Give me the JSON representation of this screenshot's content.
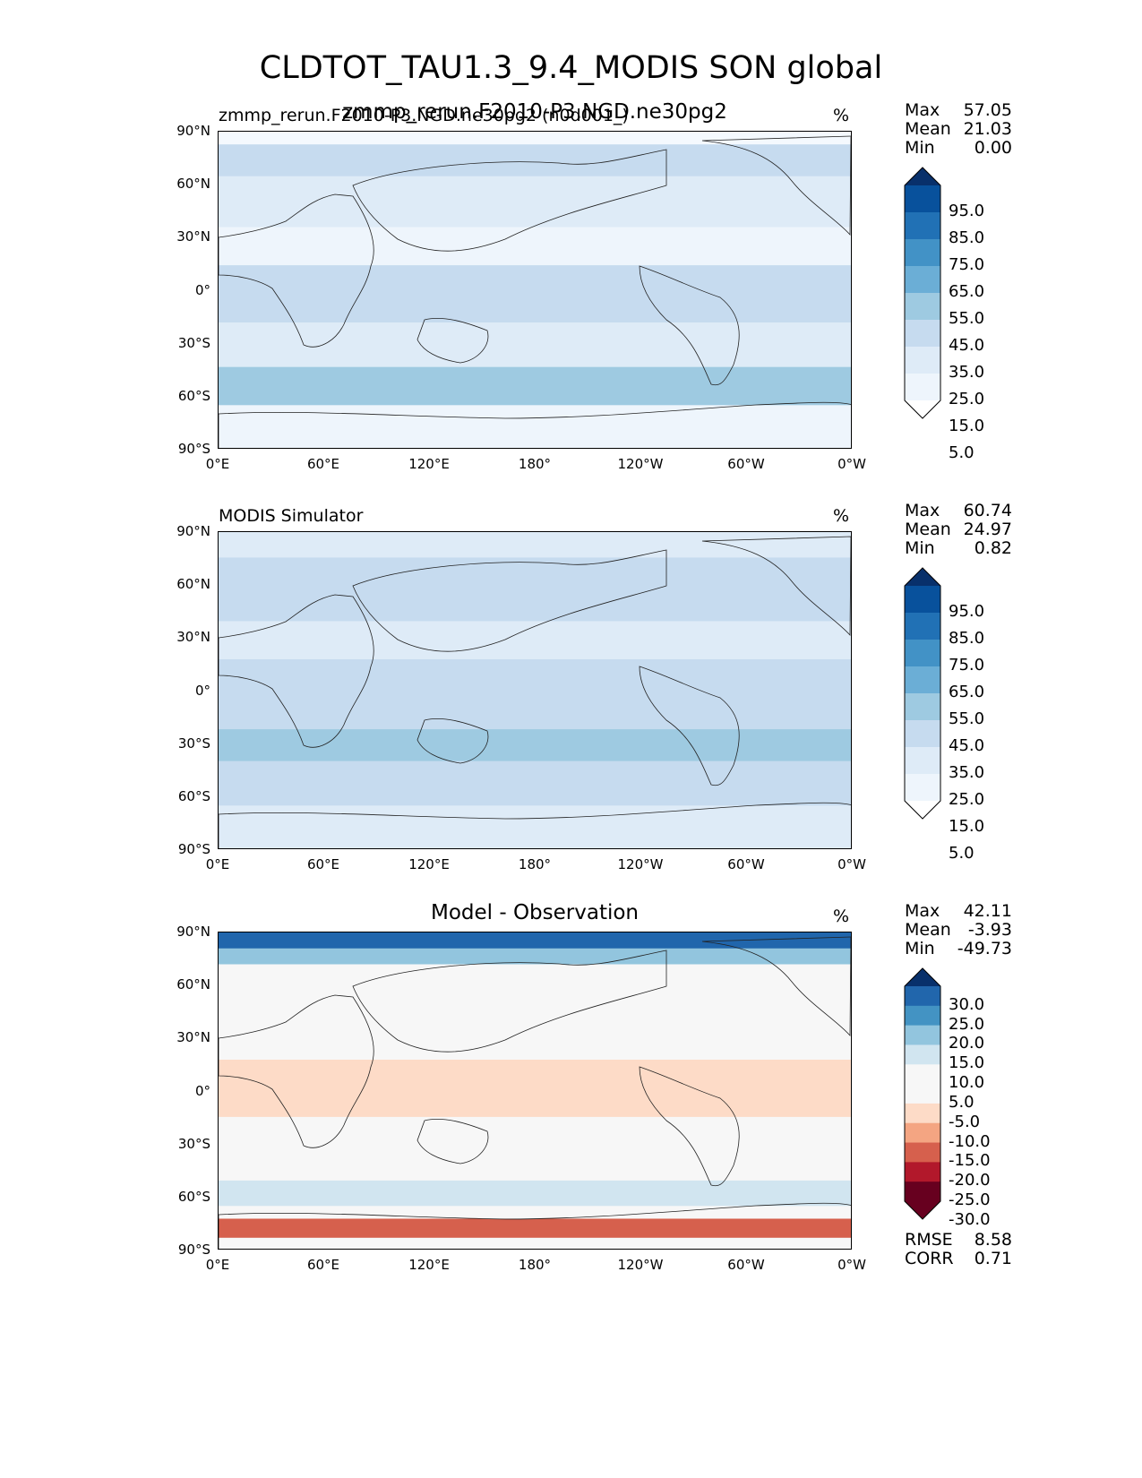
{
  "figure": {
    "title": "CLDTOT_TAU1.3_9.4_MODIS SON global"
  },
  "axes": {
    "lat_ticks": [
      "90°N",
      "60°N",
      "30°N",
      "0°",
      "30°S",
      "60°S",
      "90°S"
    ],
    "lon_ticks": [
      "0°E",
      "60°E",
      "120°E",
      "180°",
      "120°W",
      "60°W",
      "0°W"
    ]
  },
  "panels": [
    {
      "left_title": "zmmp_rerun.F2010-P3.NGD.ne30pg2 (n0d001_)",
      "center_title": "zmmp_rerun.F2010-P3.NGD.ne30pg2",
      "unit": "%",
      "stats": [
        {
          "label": "Max",
          "value": "57.05"
        },
        {
          "label": "Mean",
          "value": "21.03"
        },
        {
          "label": "Min",
          "value": "0.00"
        }
      ],
      "colorbar": {
        "labels": [
          "95.0",
          "85.0",
          "75.0",
          "65.0",
          "55.0",
          "45.0",
          "35.0",
          "25.0",
          "15.0",
          "5.0"
        ],
        "colors": [
          "#08306b",
          "#08519c",
          "#2171b5",
          "#4292c6",
          "#6baed6",
          "#9ecae1",
          "#c6dbef",
          "#deebf7",
          "#eef5fc",
          "#ffffff"
        ]
      }
    },
    {
      "left_title": "MODIS Simulator",
      "center_title": "",
      "unit": "%",
      "stats": [
        {
          "label": "Max",
          "value": "60.74"
        },
        {
          "label": "Mean",
          "value": "24.97"
        },
        {
          "label": "Min",
          "value": "0.82"
        }
      ],
      "colorbar": {
        "labels": [
          "95.0",
          "85.0",
          "75.0",
          "65.0",
          "55.0",
          "45.0",
          "35.0",
          "25.0",
          "15.0",
          "5.0"
        ],
        "colors": [
          "#08306b",
          "#08519c",
          "#2171b5",
          "#4292c6",
          "#6baed6",
          "#9ecae1",
          "#c6dbef",
          "#deebf7",
          "#eef5fc",
          "#ffffff"
        ]
      }
    },
    {
      "left_title": "",
      "center_title": "Model - Observation",
      "unit": "%",
      "stats": [
        {
          "label": "Max",
          "value": "42.11"
        },
        {
          "label": "Mean",
          "value": "-3.93"
        },
        {
          "label": "Min",
          "value": "-49.73"
        }
      ],
      "extra_stats": [
        {
          "label": "RMSE",
          "value": "8.58"
        },
        {
          "label": "CORR",
          "value": "0.71"
        }
      ],
      "colorbar": {
        "labels": [
          "30.0",
          "25.0",
          "20.0",
          "15.0",
          "10.0",
          "5.0",
          "-5.0",
          "-10.0",
          "-15.0",
          "-20.0",
          "-25.0",
          "-30.0"
        ],
        "colors": [
          "#08306b",
          "#2166ac",
          "#4393c3",
          "#92c5de",
          "#d1e5f0",
          "#f7f7f7",
          "#f7f7f7",
          "#fddbc7",
          "#f4a582",
          "#d6604d",
          "#b2182b",
          "#67001f",
          "#67001f"
        ]
      }
    }
  ]
}
